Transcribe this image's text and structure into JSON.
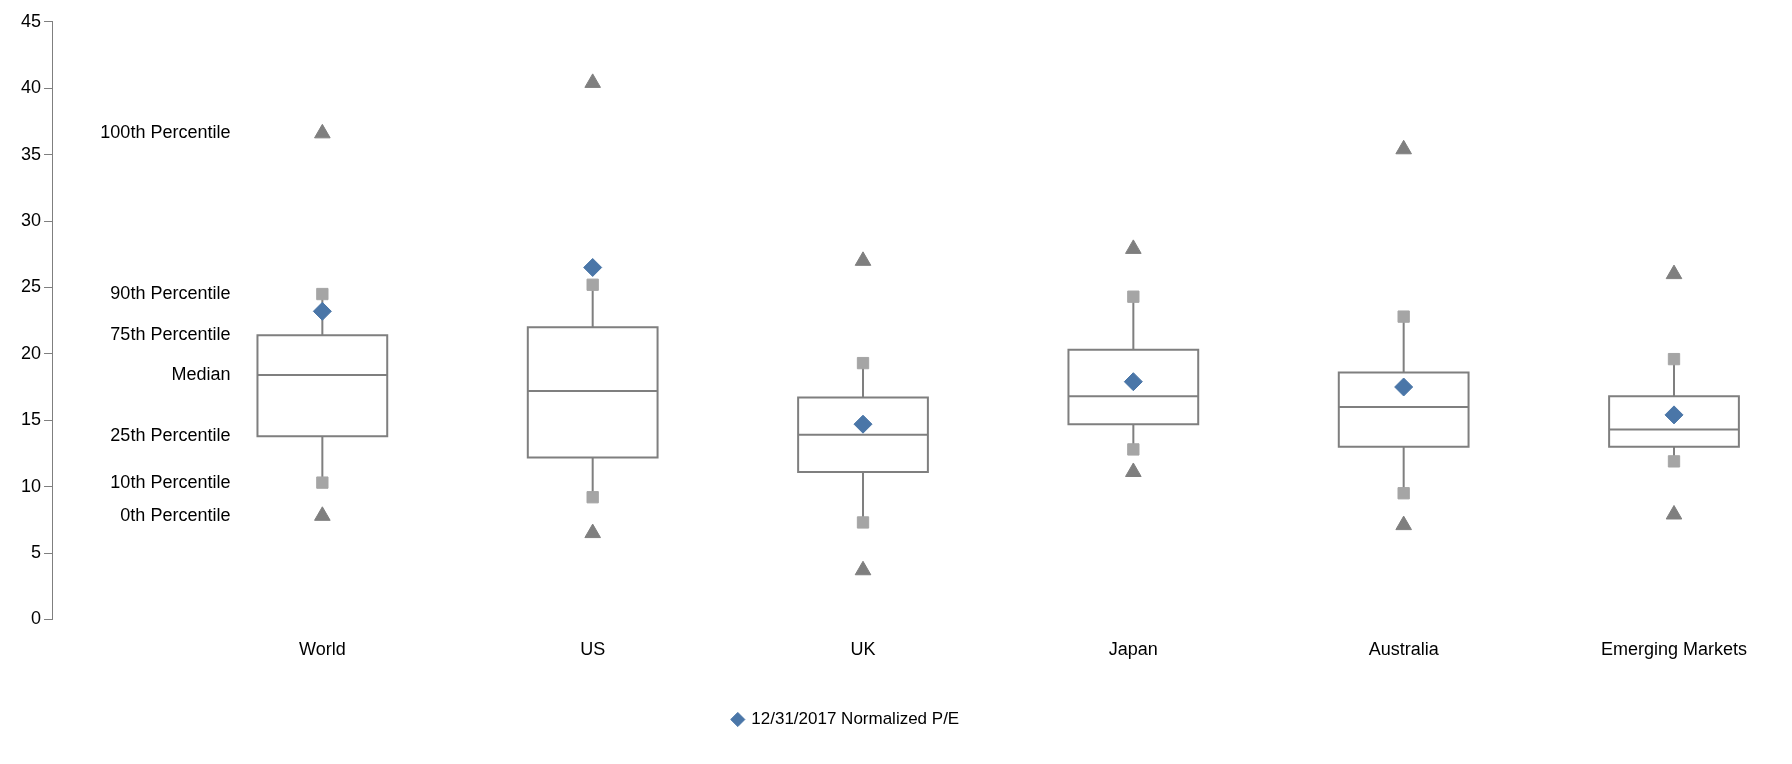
{
  "chart_data": {
    "type": "box",
    "categories": [
      "World",
      "US",
      "UK",
      "Japan",
      "Australia",
      "Emerging Markets"
    ],
    "color": "#7f7f7f",
    "boxes": [
      {
        "low": 10.3,
        "q1": 13.8,
        "median": 18.4,
        "q3": 21.4,
        "high": 24.5,
        "outliers": [
          7.8,
          36.6
        ]
      },
      {
        "low": 9.2,
        "q1": 12.2,
        "median": 17.2,
        "q3": 22.0,
        "high": 25.2,
        "outliers": [
          6.5,
          40.4
        ]
      },
      {
        "low": 7.3,
        "q1": 11.1,
        "median": 13.9,
        "q3": 16.7,
        "high": 19.3,
        "outliers": [
          3.7,
          27.0
        ]
      },
      {
        "low": 12.8,
        "q1": 14.7,
        "median": 16.8,
        "q3": 20.3,
        "high": 24.3,
        "outliers": [
          11.1,
          27.9
        ]
      },
      {
        "low": 9.5,
        "q1": 13.0,
        "median": 16.0,
        "q3": 18.6,
        "high": 22.8,
        "outliers": [
          7.1,
          35.4
        ]
      },
      {
        "low": 11.9,
        "q1": 13.0,
        "median": 14.3,
        "q3": 16.8,
        "high": 19.6,
        "outliers": [
          7.9,
          26.0
        ]
      }
    ],
    "series": [
      {
        "type": "scatter",
        "color": "#a5a5a5",
        "marker": "square",
        "x": [
          "World",
          "US",
          "UK",
          "Japan",
          "Australia",
          "Emerging Markets"
        ],
        "values": [
          10.3,
          9.2,
          7.3,
          12.8,
          9.5,
          11.9
        ]
      },
      {
        "type": "scatter",
        "color": "#a5a5a5",
        "marker": "square",
        "x": [
          "World",
          "US",
          "UK",
          "Japan",
          "Australia",
          "Emerging Markets"
        ],
        "values": [
          24.5,
          25.2,
          19.3,
          24.3,
          22.8,
          19.6
        ]
      },
      {
        "name": "12/31/2017 Normalized P/E",
        "type": "scatter",
        "color": "#4a76a8",
        "marker": "diamond",
        "x": [
          "World",
          "US",
          "UK",
          "Japan",
          "Australia",
          "Emerging Markets"
        ],
        "values": [
          23.2,
          26.5,
          14.7,
          17.9,
          17.5,
          15.4
        ]
      }
    ],
    "ylim": [
      0,
      45
    ],
    "yticks": [
      0,
      5,
      10,
      15,
      20,
      25,
      30,
      35,
      40,
      45
    ],
    "grid": false,
    "legend": "bottom",
    "annotations": [
      "100th Percentile",
      "90th Percentile",
      "75th Percentile",
      "Median",
      "25th Percentile",
      "10th Percentile",
      "0th Percentile"
    ]
  }
}
